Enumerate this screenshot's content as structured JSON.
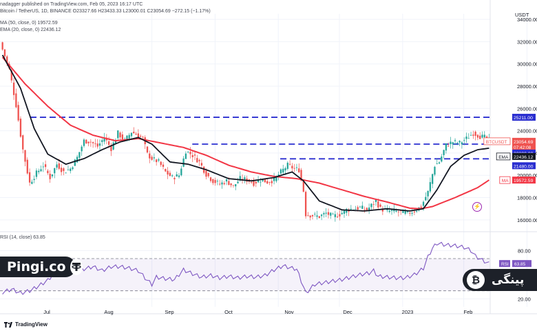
{
  "header": {
    "published": "nadagger published on TradingView.com, Feb 05, 2023 16:17 UTC",
    "symbol_line": "Bitcoin / TetherUS, 1D, BINANCE  O23327.66  H23433.33  L23000.01  C23054.69  −272.15 (−1.17%)"
  },
  "legend": {
    "ma": "MA (50, close, 0)  19572.59",
    "ema": "EMA (20, close, 0)  22436.12",
    "rsi": "RSI (14, close)  63.85"
  },
  "branding": {
    "left_text": "Pingi.co",
    "right_text": "پینگی",
    "tv_logo": "TradingView"
  },
  "colors": {
    "up": "#26a69a",
    "down": "#ef5350",
    "ma": "#f23645",
    "ema": "#131722",
    "level": "#2a2ed0",
    "rsi": "#7e57c2",
    "dark": "#1d2129",
    "btc_orange": "#f7931a",
    "tether_green": "#26a17b"
  },
  "icons": {
    "lightning": "lightning-icon",
    "tether": "tether-icon",
    "bitcoin": "bitcoin-icon"
  },
  "chart_data": {
    "type": "candlestick",
    "title": "Bitcoin / TetherUS, 1D, BINANCE",
    "currency": "USDT",
    "y_ticks": [
      16000,
      18000,
      20000,
      22000,
      24000,
      26000,
      28000,
      30000,
      32000,
      34000
    ],
    "y_range": [
      15000,
      34500
    ],
    "x_labels": [
      "Jul",
      "Aug",
      "Sep",
      "Oct",
      "Nov",
      "Dec",
      "2023",
      "Feb"
    ],
    "levels": [
      25211,
      22800,
      21480
    ],
    "price_tags": [
      {
        "label": "BTCUSDT",
        "value": "23054.69",
        "sub": "07:42:08",
        "color": "#ef5350"
      },
      {
        "label": "",
        "value": "25211.00",
        "color": "#2a2ed0"
      },
      {
        "label": "",
        "value": "22800.00",
        "color": "#2a2ed0"
      },
      {
        "label": "EMA",
        "value": "22436.12",
        "color": "#131722"
      },
      {
        "label": "",
        "value": "21480.00",
        "color": "#2a2ed0"
      },
      {
        "label": "MA",
        "value": "19572.59",
        "color": "#f23645"
      }
    ],
    "close_series_anchors": [
      [
        0,
        31300
      ],
      [
        3,
        29500
      ],
      [
        6,
        26300
      ],
      [
        9,
        22300
      ],
      [
        12,
        19300
      ],
      [
        15,
        20200
      ],
      [
        18,
        20900
      ],
      [
        21,
        19800
      ],
      [
        24,
        21000
      ],
      [
        27,
        20300
      ],
      [
        30,
        20600
      ],
      [
        33,
        21600
      ],
      [
        36,
        23100
      ],
      [
        39,
        23000
      ],
      [
        42,
        22600
      ],
      [
        45,
        23400
      ],
      [
        48,
        22400
      ],
      [
        51,
        23800
      ],
      [
        54,
        23100
      ],
      [
        57,
        23900
      ],
      [
        60,
        23600
      ],
      [
        62,
        23300
      ],
      [
        64,
        21900
      ],
      [
        66,
        21500
      ],
      [
        69,
        21200
      ],
      [
        72,
        20300
      ],
      [
        75,
        19800
      ],
      [
        78,
        20000
      ],
      [
        81,
        22200
      ],
      [
        84,
        21800
      ],
      [
        87,
        21200
      ],
      [
        90,
        20100
      ],
      [
        93,
        19500
      ],
      [
        96,
        19200
      ],
      [
        99,
        19500
      ],
      [
        102,
        19000
      ],
      [
        105,
        19700
      ],
      [
        108,
        19600
      ],
      [
        111,
        19300
      ],
      [
        114,
        19600
      ],
      [
        117,
        19400
      ],
      [
        120,
        19600
      ],
      [
        123,
        20300
      ],
      [
        126,
        20900
      ],
      [
        129,
        20600
      ],
      [
        131,
        20500
      ],
      [
        133,
        18600
      ],
      [
        134,
        16500
      ],
      [
        137,
        16400
      ],
      [
        140,
        16300
      ],
      [
        143,
        16600
      ],
      [
        146,
        16300
      ],
      [
        149,
        16500
      ],
      [
        152,
        16900
      ],
      [
        155,
        17000
      ],
      [
        158,
        17100
      ],
      [
        161,
        16900
      ],
      [
        163,
        17300
      ],
      [
        165,
        17700
      ],
      [
        167,
        17000
      ],
      [
        170,
        16800
      ],
      [
        173,
        16800
      ],
      [
        176,
        16700
      ],
      [
        179,
        16600
      ],
      [
        182,
        16800
      ],
      [
        185,
        17200
      ],
      [
        188,
        18500
      ],
      [
        191,
        20900
      ],
      [
        193,
        21200
      ],
      [
        196,
        22700
      ],
      [
        199,
        23000
      ],
      [
        202,
        22900
      ],
      [
        205,
        23300
      ],
      [
        208,
        23800
      ],
      [
        211,
        23500
      ],
      [
        213,
        23400
      ],
      [
        215,
        23054
      ]
    ],
    "ma50_anchors": [
      [
        0,
        30600
      ],
      [
        10,
        28200
      ],
      [
        20,
        26200
      ],
      [
        30,
        24500
      ],
      [
        40,
        23600
      ],
      [
        50,
        23100
      ],
      [
        60,
        23300
      ],
      [
        70,
        22900
      ],
      [
        80,
        22500
      ],
      [
        90,
        21800
      ],
      [
        100,
        20900
      ],
      [
        110,
        20300
      ],
      [
        120,
        19900
      ],
      [
        130,
        19700
      ],
      [
        140,
        19300
      ],
      [
        150,
        18700
      ],
      [
        160,
        18100
      ],
      [
        170,
        17600
      ],
      [
        180,
        17050
      ],
      [
        185,
        17000
      ],
      [
        190,
        17200
      ],
      [
        200,
        18000
      ],
      [
        210,
        18900
      ],
      [
        215,
        19572
      ]
    ],
    "ema20_anchors": [
      [
        0,
        30800
      ],
      [
        8,
        27800
      ],
      [
        14,
        24200
      ],
      [
        20,
        21900
      ],
      [
        28,
        21000
      ],
      [
        36,
        21500
      ],
      [
        44,
        22300
      ],
      [
        52,
        23000
      ],
      [
        60,
        23400
      ],
      [
        66,
        22800
      ],
      [
        74,
        21200
      ],
      [
        82,
        21000
      ],
      [
        90,
        20500
      ],
      [
        100,
        19700
      ],
      [
        110,
        19500
      ],
      [
        120,
        19800
      ],
      [
        128,
        20300
      ],
      [
        133,
        19500
      ],
      [
        140,
        17700
      ],
      [
        150,
        16900
      ],
      [
        160,
        16800
      ],
      [
        170,
        17000
      ],
      [
        180,
        16800
      ],
      [
        186,
        17000
      ],
      [
        192,
        18700
      ],
      [
        198,
        20800
      ],
      [
        204,
        21800
      ],
      [
        210,
        22300
      ],
      [
        215,
        22436
      ]
    ],
    "rsi": {
      "label": "RSI (14, close)",
      "last": "63.85",
      "levels": [
        70,
        30
      ],
      "ticks": [
        20,
        80
      ],
      "anchors": [
        [
          0,
          28
        ],
        [
          4,
          32
        ],
        [
          8,
          27
        ],
        [
          12,
          30
        ],
        [
          16,
          36
        ],
        [
          20,
          43
        ],
        [
          24,
          56
        ],
        [
          28,
          50
        ],
        [
          32,
          55
        ],
        [
          36,
          57
        ],
        [
          40,
          60
        ],
        [
          44,
          55
        ],
        [
          48,
          60
        ],
        [
          52,
          60
        ],
        [
          56,
          58
        ],
        [
          60,
          55
        ],
        [
          64,
          43
        ],
        [
          66,
          38
        ],
        [
          68,
          47
        ],
        [
          72,
          45
        ],
        [
          76,
          44
        ],
        [
          80,
          56
        ],
        [
          84,
          51
        ],
        [
          88,
          47
        ],
        [
          92,
          49
        ],
        [
          96,
          46
        ],
        [
          100,
          48
        ],
        [
          104,
          46
        ],
        [
          108,
          48
        ],
        [
          112,
          47
        ],
        [
          116,
          49
        ],
        [
          120,
          56
        ],
        [
          124,
          61
        ],
        [
          128,
          58
        ],
        [
          130,
          57
        ],
        [
          133,
          35
        ],
        [
          134,
          27
        ],
        [
          138,
          38
        ],
        [
          142,
          40
        ],
        [
          146,
          42
        ],
        [
          150,
          44
        ],
        [
          154,
          47
        ],
        [
          158,
          50
        ],
        [
          162,
          52
        ],
        [
          164,
          55
        ],
        [
          166,
          48
        ],
        [
          170,
          47
        ],
        [
          174,
          46
        ],
        [
          178,
          46
        ],
        [
          182,
          50
        ],
        [
          186,
          58
        ],
        [
          188,
          72
        ],
        [
          190,
          83
        ],
        [
          192,
          89
        ],
        [
          196,
          87
        ],
        [
          200,
          86
        ],
        [
          204,
          84
        ],
        [
          207,
          80
        ],
        [
          209,
          73
        ],
        [
          212,
          68
        ],
        [
          215,
          63.85
        ]
      ]
    }
  }
}
